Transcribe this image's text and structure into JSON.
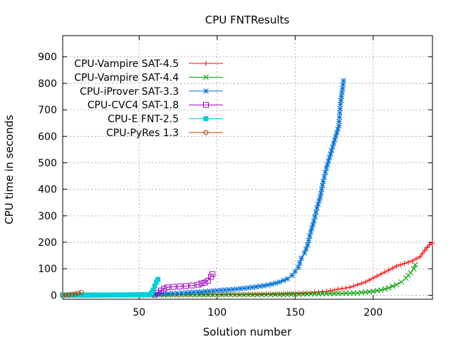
{
  "chart_data": {
    "type": "line",
    "title": "CPU FNTResults",
    "xlabel": "Solution number",
    "ylabel": "CPU time in seconds",
    "xlim": [
      1,
      238
    ],
    "ylim": [
      -15,
      980
    ],
    "xticks": [
      50,
      100,
      150,
      200
    ],
    "yticks": [
      0,
      100,
      200,
      300,
      400,
      500,
      600,
      700,
      800,
      900
    ],
    "grid": true,
    "legend_position": "top-left",
    "series": [
      {
        "name": "CPU-Vampire SAT-4.5",
        "color": "#ff0000",
        "marker": "plus",
        "points": [
          [
            1,
            0
          ],
          [
            20,
            0
          ],
          [
            40,
            1
          ],
          [
            60,
            1
          ],
          [
            80,
            2
          ],
          [
            100,
            3
          ],
          [
            120,
            4
          ],
          [
            140,
            6
          ],
          [
            150,
            7
          ],
          [
            160,
            10
          ],
          [
            170,
            15
          ],
          [
            175,
            20
          ],
          [
            180,
            25
          ],
          [
            185,
            30
          ],
          [
            190,
            40
          ],
          [
            195,
            50
          ],
          [
            200,
            65
          ],
          [
            205,
            80
          ],
          [
            210,
            95
          ],
          [
            215,
            110
          ],
          [
            220,
            120
          ],
          [
            225,
            130
          ],
          [
            230,
            145
          ],
          [
            233,
            170
          ],
          [
            236,
            190
          ],
          [
            238,
            197
          ]
        ]
      },
      {
        "name": "CPU-Vampire SAT-4.4",
        "color": "#00a000",
        "marker": "x",
        "points": [
          [
            1,
            0
          ],
          [
            20,
            0
          ],
          [
            40,
            1
          ],
          [
            60,
            1
          ],
          [
            80,
            1
          ],
          [
            100,
            2
          ],
          [
            120,
            2
          ],
          [
            140,
            3
          ],
          [
            150,
            4
          ],
          [
            160,
            5
          ],
          [
            170,
            6
          ],
          [
            180,
            7
          ],
          [
            190,
            9
          ],
          [
            200,
            15
          ],
          [
            205,
            20
          ],
          [
            210,
            28
          ],
          [
            215,
            40
          ],
          [
            218,
            50
          ],
          [
            221,
            65
          ],
          [
            224,
            85
          ],
          [
            226,
            100
          ],
          [
            227,
            115
          ]
        ]
      },
      {
        "name": "CPU-iProver SAT-3.3",
        "color": "#0070d8",
        "marker": "star",
        "points": [
          [
            1,
            0
          ],
          [
            20,
            1
          ],
          [
            40,
            2
          ],
          [
            60,
            3
          ],
          [
            80,
            10
          ],
          [
            90,
            13
          ],
          [
            100,
            18
          ],
          [
            110,
            22
          ],
          [
            120,
            28
          ],
          [
            130,
            36
          ],
          [
            135,
            42
          ],
          [
            140,
            50
          ],
          [
            145,
            62
          ],
          [
            148,
            75
          ],
          [
            150,
            90
          ],
          [
            152,
            105
          ],
          [
            154,
            140
          ],
          [
            156,
            160
          ],
          [
            158,
            190
          ],
          [
            160,
            240
          ],
          [
            162,
            280
          ],
          [
            164,
            330
          ],
          [
            166,
            370
          ],
          [
            168,
            430
          ],
          [
            170,
            480
          ],
          [
            172,
            520
          ],
          [
            174,
            560
          ],
          [
            176,
            600
          ],
          [
            178,
            640
          ],
          [
            179,
            720
          ],
          [
            181,
            810
          ]
        ]
      },
      {
        "name": "CPU-CVC4 SAT-1.8",
        "color": "#a000c0",
        "marker": "square",
        "points": [
          [
            60,
            2
          ],
          [
            62,
            10
          ],
          [
            64,
            18
          ],
          [
            66,
            25
          ],
          [
            68,
            30
          ],
          [
            72,
            32
          ],
          [
            76,
            33
          ],
          [
            80,
            35
          ],
          [
            84,
            37
          ],
          [
            88,
            40
          ],
          [
            90,
            45
          ],
          [
            92,
            48
          ],
          [
            94,
            55
          ],
          [
            96,
            70
          ],
          [
            97,
            80
          ]
        ]
      },
      {
        "name": "CPU-E FNT-2.5",
        "color": "#00d0d8",
        "marker": "filled-square",
        "points": [
          [
            1,
            1
          ],
          [
            10,
            1
          ],
          [
            20,
            1
          ],
          [
            30,
            1
          ],
          [
            40,
            1
          ],
          [
            50,
            2
          ],
          [
            55,
            2
          ],
          [
            57,
            3
          ],
          [
            58,
            10
          ],
          [
            59,
            20
          ],
          [
            60,
            35
          ],
          [
            61,
            50
          ],
          [
            62,
            60
          ]
        ]
      },
      {
        "name": "CPU-PyRes 1.3",
        "color": "#b04000",
        "marker": "circle",
        "points": [
          [
            1,
            0
          ],
          [
            3,
            1
          ],
          [
            5,
            2
          ],
          [
            7,
            3
          ],
          [
            9,
            5
          ],
          [
            11,
            8
          ],
          [
            13,
            11
          ]
        ]
      }
    ]
  }
}
